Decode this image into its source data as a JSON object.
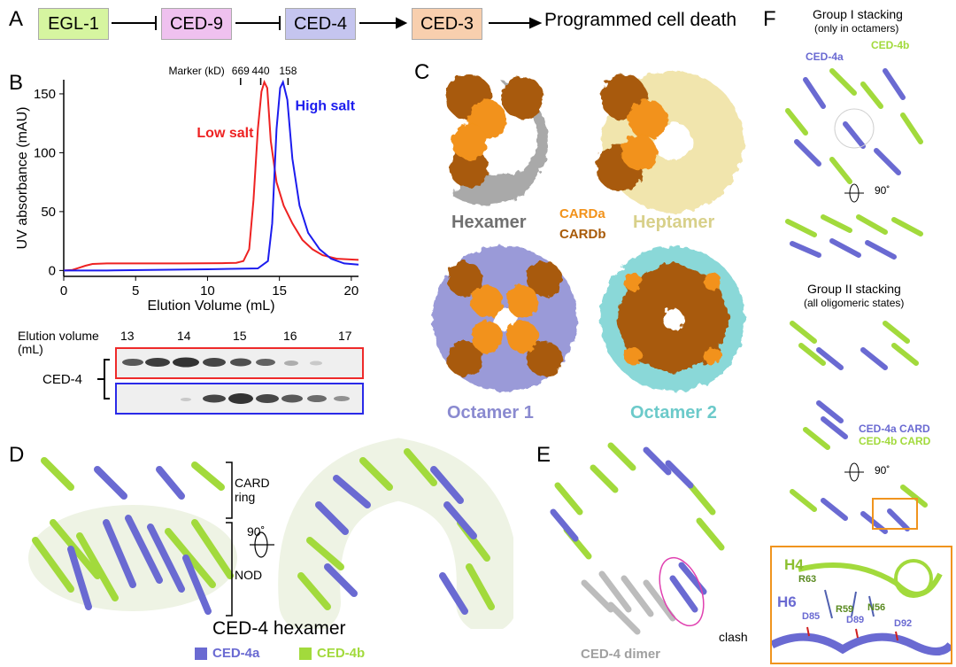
{
  "panels": {
    "A": "A",
    "B": "B",
    "C": "C",
    "D": "D",
    "E": "E",
    "F": "F"
  },
  "pathway": {
    "nodes": [
      {
        "label": "EGL-1",
        "color": "#d6f5a0"
      },
      {
        "label": "CED-9",
        "color": "#efc1ef"
      },
      {
        "label": "CED-4",
        "color": "#c5c5ef"
      },
      {
        "label": "CED-3",
        "color": "#f8cfae"
      }
    ],
    "outcome": "Programmed cell death"
  },
  "chart_data": {
    "type": "line",
    "xlabel": "Elution Volume (mL)",
    "ylabel": "UV absorbance (mAU)",
    "xlim": [
      0,
      20.5
    ],
    "ylim": [
      -5,
      162
    ],
    "xticks": [
      0,
      5,
      10,
      15,
      20
    ],
    "yticks": [
      0,
      50,
      100,
      150
    ],
    "marker_title": "Marker (kD)",
    "markers": [
      {
        "label": "669",
        "x": 12.3
      },
      {
        "label": "440",
        "x": 13.7
      },
      {
        "label": "158",
        "x": 15.6
      }
    ],
    "series": [
      {
        "name": "Low salt",
        "color": "#ee2222",
        "points": [
          [
            0,
            0
          ],
          [
            0.6,
            0.5
          ],
          [
            1.0,
            2
          ],
          [
            1.5,
            4
          ],
          [
            2.0,
            5.5
          ],
          [
            3,
            6
          ],
          [
            5,
            6
          ],
          [
            8,
            6
          ],
          [
            11,
            6.2
          ],
          [
            12,
            6.5
          ],
          [
            12.5,
            8
          ],
          [
            12.9,
            18
          ],
          [
            13.2,
            60
          ],
          [
            13.5,
            120
          ],
          [
            13.75,
            152
          ],
          [
            13.95,
            160
          ],
          [
            14.15,
            155
          ],
          [
            14.4,
            110
          ],
          [
            14.8,
            75
          ],
          [
            15.3,
            55
          ],
          [
            15.9,
            40
          ],
          [
            16.6,
            26
          ],
          [
            17.3,
            18
          ],
          [
            18,
            13
          ],
          [
            19,
            10
          ],
          [
            20.5,
            9
          ]
        ]
      },
      {
        "name": "High salt",
        "color": "#1c1cee",
        "points": [
          [
            0,
            0
          ],
          [
            3,
            0
          ],
          [
            6,
            0.5
          ],
          [
            10,
            1
          ],
          [
            13.5,
            1.8
          ],
          [
            14.2,
            8
          ],
          [
            14.5,
            40
          ],
          [
            14.8,
            120
          ],
          [
            15.05,
            155
          ],
          [
            15.25,
            160
          ],
          [
            15.55,
            145
          ],
          [
            15.9,
            95
          ],
          [
            16.4,
            55
          ],
          [
            17,
            32
          ],
          [
            17.8,
            18
          ],
          [
            18.6,
            10
          ],
          [
            19.5,
            6
          ],
          [
            20.5,
            5
          ]
        ]
      }
    ]
  },
  "gel": {
    "title": "Elution volume",
    "unit": "(mL)",
    "fractions": [
      "13",
      "14",
      "15",
      "16",
      "17"
    ],
    "protein": "CED-4"
  },
  "panel_c": {
    "labels": {
      "hexamer": "Hexamer",
      "heptamer": "Heptamer",
      "octamer1": "Octamer 1",
      "octamer2": "Octamer 2",
      "carda": "CARDa",
      "cardb": "CARDb"
    },
    "colors": {
      "carda": "#f2921a",
      "cardb": "#a85a08",
      "hexamer": "#a8a8a8",
      "heptamer": "#f1e5ad",
      "octamer1": "#9a9ad8",
      "octamer2": "#8ad8d8"
    }
  },
  "panel_d": {
    "card_ring": "CARD",
    "card_ring2": "ring",
    "nod": "NOD",
    "rotation": "90˚",
    "title": "CED-4 hexamer",
    "legend_a": "CED-4a",
    "legend_b": "CED-4b",
    "color_a": "#6a6ad2",
    "color_b": "#a2da3c"
  },
  "panel_e": {
    "clash": "clash",
    "dimer": "CED-4 dimer"
  },
  "panel_f": {
    "group1": "Group I stacking",
    "group1_sub": "(only in octamers)",
    "ced4a": "CED-4a",
    "ced4b": "CED-4b",
    "rot1": "90˚",
    "group2": "Group II stacking",
    "group2_sub": "(all oligomeric states)",
    "card_a": "CED-4a CARD",
    "card_b": "CED-4b CARD",
    "rot2": "90˚",
    "inset": {
      "h4": "H4",
      "h6": "H6",
      "r63": "R63",
      "r59": "R59",
      "n56": "N56",
      "d85": "D85",
      "d89": "D89",
      "d92": "D92"
    }
  }
}
